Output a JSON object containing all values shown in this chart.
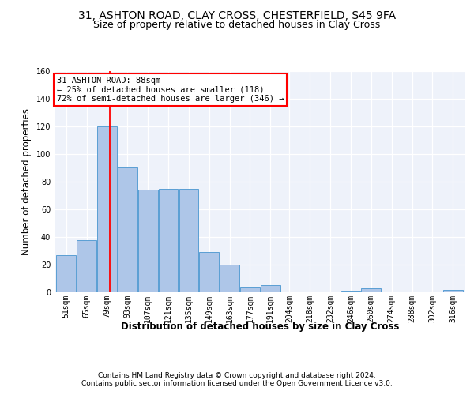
{
  "title_line1": "31, ASHTON ROAD, CLAY CROSS, CHESTERFIELD, S45 9FA",
  "title_line2": "Size of property relative to detached houses in Clay Cross",
  "xlabel": "Distribution of detached houses by size in Clay Cross",
  "ylabel": "Number of detached properties",
  "footer_line1": "Contains HM Land Registry data © Crown copyright and database right 2024.",
  "footer_line2": "Contains public sector information licensed under the Open Government Licence v3.0.",
  "annotation_line1": "31 ASHTON ROAD: 88sqm",
  "annotation_line2": "← 25% of detached houses are smaller (118)",
  "annotation_line3": "72% of semi-detached houses are larger (346) →",
  "bar_color": "#aec6e8",
  "bar_edge_color": "#5a9fd4",
  "red_line_x": 88,
  "bin_edges": [
    51,
    65,
    79,
    93,
    107,
    121,
    135,
    149,
    163,
    177,
    191,
    204,
    218,
    232,
    246,
    260,
    274,
    288,
    302,
    316,
    330
  ],
  "bar_heights": [
    27,
    38,
    120,
    90,
    74,
    75,
    75,
    29,
    20,
    4,
    5,
    0,
    0,
    0,
    1,
    3,
    0,
    0,
    0,
    2
  ],
  "ylim": [
    0,
    160
  ],
  "yticks": [
    0,
    20,
    40,
    60,
    80,
    100,
    120,
    140,
    160
  ],
  "background_color": "#eef2fa",
  "grid_color": "#ffffff",
  "title_fontsize": 10,
  "subtitle_fontsize": 9,
  "axis_label_fontsize": 8.5,
  "tick_fontsize": 7,
  "annotation_fontsize": 7.5,
  "footer_fontsize": 6.5
}
